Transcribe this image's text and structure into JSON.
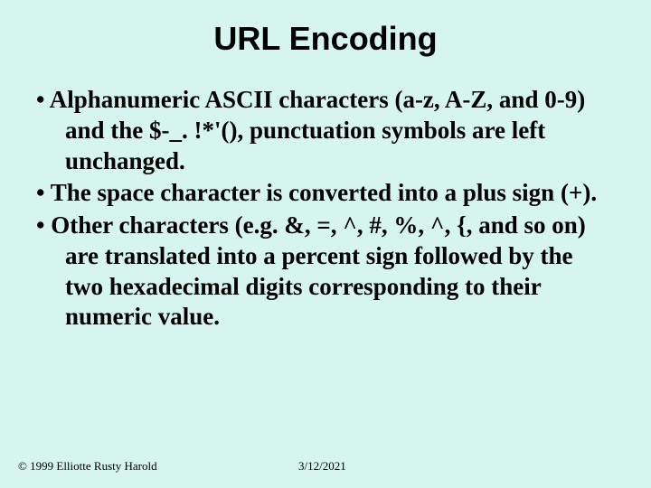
{
  "title": "URL Encoding",
  "bullets": [
    "Alphanumeric ASCII characters (a-z, A-Z, and 0-9) and the $-_. !*'(), punctuation symbols are left unchanged.",
    "The space character is converted into a plus sign (+).",
    "Other characters (e.g. &, =, ^, #, %, ^, {, and so on) are translated into a percent sign followed by the two hexadecimal digits corresponding to their numeric value."
  ],
  "footer": {
    "copyright": "© 1999 Elliotte Rusty Harold",
    "date": "3/12/2021"
  },
  "colors": {
    "background": "#d6f5ee",
    "text": "#000000"
  },
  "typography": {
    "title_fontsize": 36,
    "title_family": "Arial",
    "body_fontsize": 27,
    "body_family": "Times New Roman",
    "footer_fontsize": 13
  }
}
